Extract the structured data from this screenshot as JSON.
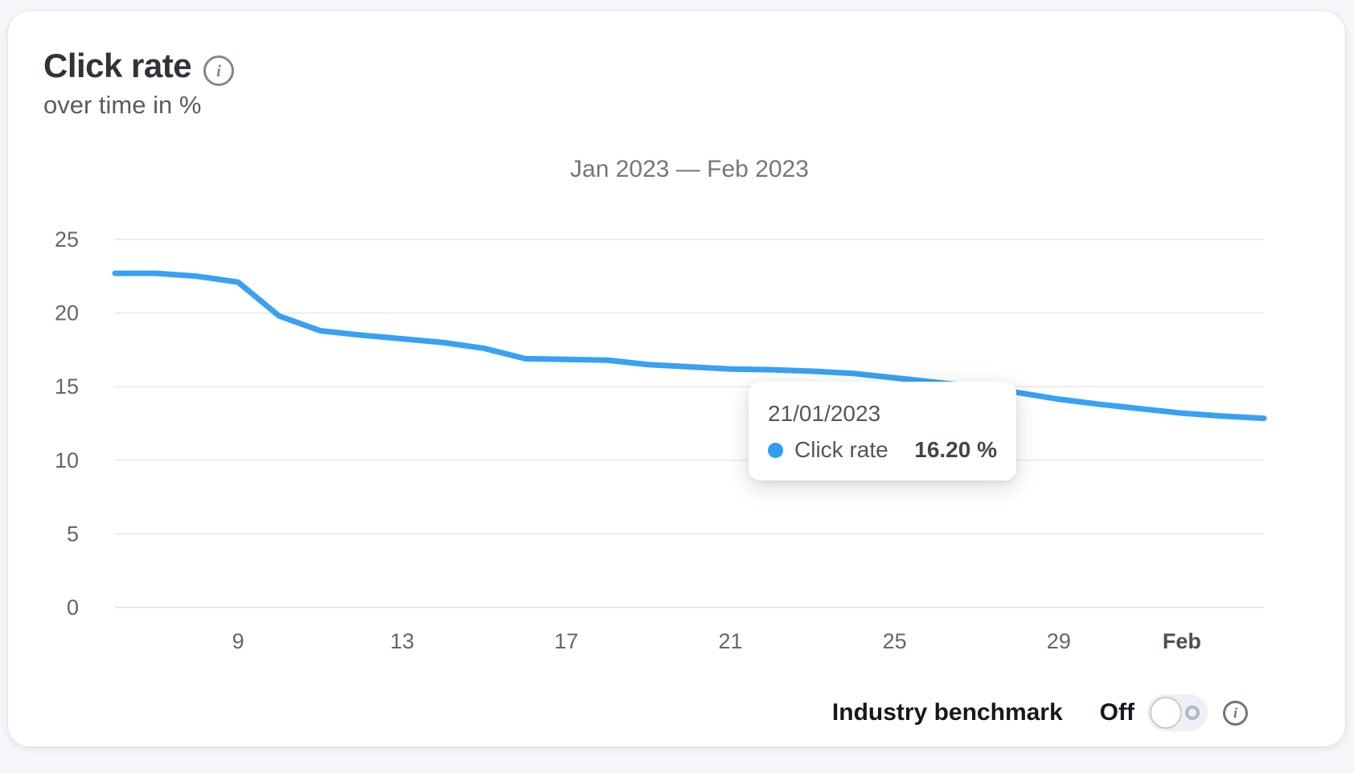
{
  "header": {
    "title": "Click rate",
    "subtitle": "over time in %",
    "info_icon": "info-circle-icon"
  },
  "chart_data": {
    "type": "line",
    "title": "Jan 2023 — Feb 2023",
    "x": [
      "2023-01-06",
      "2023-01-07",
      "2023-01-08",
      "2023-01-09",
      "2023-01-10",
      "2023-01-11",
      "2023-01-12",
      "2023-01-13",
      "2023-01-14",
      "2023-01-15",
      "2023-01-16",
      "2023-01-17",
      "2023-01-18",
      "2023-01-19",
      "2023-01-20",
      "2023-01-21",
      "2023-01-22",
      "2023-01-23",
      "2023-01-24",
      "2023-01-25",
      "2023-01-26",
      "2023-01-27",
      "2023-01-28",
      "2023-01-29",
      "2023-01-30",
      "2023-01-31",
      "2023-02-01",
      "2023-02-02",
      "2023-02-03"
    ],
    "series": [
      {
        "name": "Click rate",
        "color": "#38a1f3",
        "values": [
          22.7,
          22.7,
          22.5,
          22.1,
          19.8,
          18.8,
          18.5,
          18.25,
          18.0,
          17.6,
          16.9,
          16.85,
          16.8,
          16.5,
          16.35,
          16.2,
          16.15,
          16.05,
          15.9,
          15.6,
          15.3,
          15.0,
          14.6,
          14.15,
          13.8,
          13.5,
          13.2,
          13.0,
          12.85
        ]
      }
    ],
    "ylabel": "",
    "xlabel": "",
    "unit": "%",
    "ylim": [
      0,
      25
    ],
    "yticks": [
      0,
      5,
      10,
      15,
      20,
      25
    ],
    "xticks": [
      {
        "label": "9",
        "index": 3,
        "bold": false
      },
      {
        "label": "13",
        "index": 7,
        "bold": false
      },
      {
        "label": "17",
        "index": 11,
        "bold": false
      },
      {
        "label": "21",
        "index": 15,
        "bold": false
      },
      {
        "label": "25",
        "index": 19,
        "bold": false
      },
      {
        "label": "29",
        "index": 23,
        "bold": false
      },
      {
        "label": "Feb",
        "index": 26,
        "bold": true
      }
    ],
    "grid": "horizontal",
    "legend_position": "none",
    "colors": {
      "gridline": "#ececef",
      "zero_line": "#e4e6ea",
      "tick_label": "#61666f",
      "bold_tick_label": "#4a4f58"
    }
  },
  "tooltip": {
    "date": "21/01/2023",
    "series": "Click rate",
    "value": "16.20 %",
    "dot_color": "#2f9ff2"
  },
  "benchmark": {
    "label": "Industry benchmark",
    "state": "Off",
    "toggle_state": "off"
  }
}
